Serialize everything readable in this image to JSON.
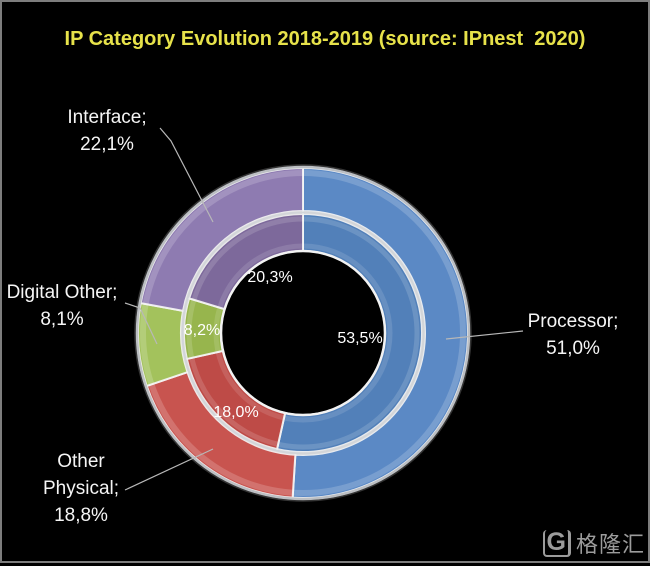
{
  "chart_data": {
    "type": "pie",
    "subtype": "concentric-double-donut",
    "title": "IP Category Evolution 2018-2019 (source: IPnest  2020)",
    "title_color": "#E7E24A",
    "background": "#000000",
    "categories": [
      "Processor",
      "Other Physical",
      "Digital Other",
      "Interface"
    ],
    "series": [
      {
        "name": "outer_ring",
        "values": [
          51.0,
          18.8,
          8.1,
          22.1
        ],
        "labels": [
          "51,0%",
          "18,8%",
          "8,1%",
          "22,1%"
        ]
      },
      {
        "name": "inner_ring",
        "values": [
          53.5,
          18.0,
          8.2,
          20.3
        ],
        "labels": [
          "53,5%",
          "18,0%",
          "8,2%",
          "20,3%"
        ]
      }
    ],
    "colors": {
      "outer": [
        "#5B89C5",
        "#C8544F",
        "#A3C25C",
        "#8E7BB1"
      ],
      "inner": [
        "#5280B9",
        "#BE4B47",
        "#97B54D",
        "#7D699B"
      ]
    },
    "label_color": "#FFFFFF",
    "legend": "none",
    "start_angle_deg": 0,
    "direction": "clockwise"
  },
  "callouts": {
    "interface": "Interface;\n22,1%",
    "digital_other": "Digital Other;\n8,1%",
    "other_physical": "Other\nPhysical;\n18,8%",
    "processor": "Processor;\n51,0%"
  },
  "watermark": {
    "logo_letter": "G",
    "text": "格隆汇"
  }
}
